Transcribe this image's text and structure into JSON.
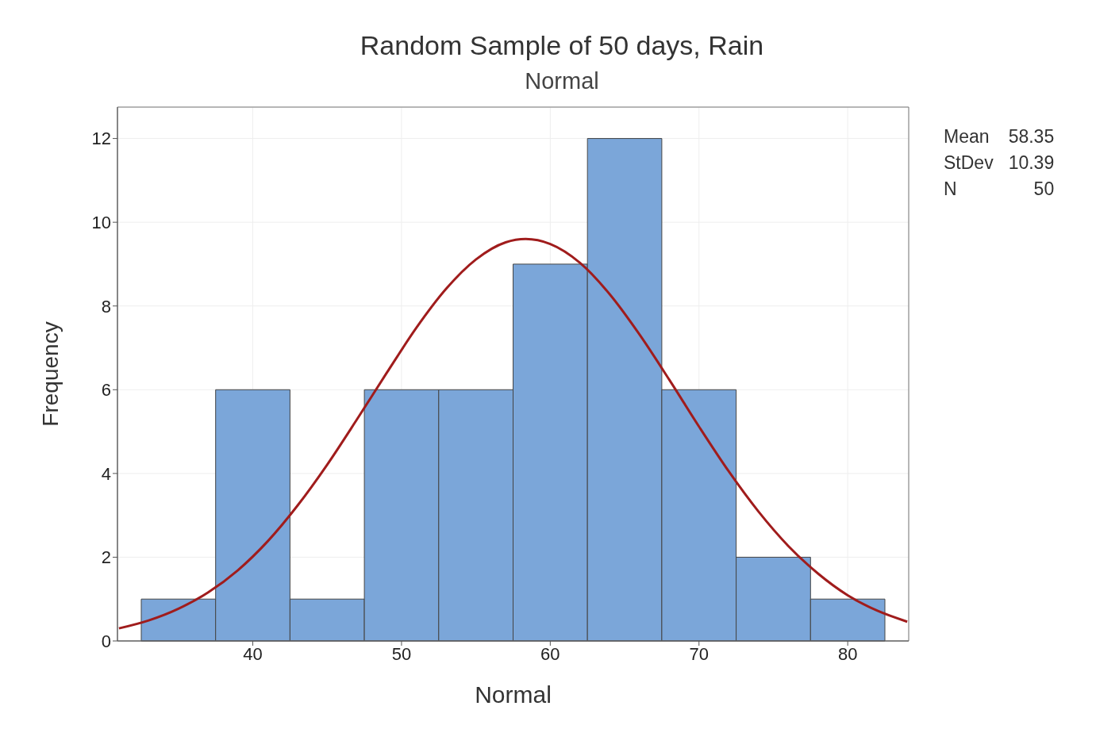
{
  "chart_data": {
    "type": "histogram",
    "title": "Random Sample of 50 days, Rain",
    "subtitle": "Normal",
    "xlabel": "Normal",
    "ylabel": "Frequency",
    "series": [
      {
        "color": "#7ba6d9",
        "bins": [
          32.5,
          37.5,
          42.5,
          47.5,
          52.5,
          57.5,
          62.5,
          67.5,
          72.5,
          77.5,
          82.5
        ],
        "values": [
          1,
          6,
          1,
          6,
          6,
          9,
          12,
          6,
          2,
          1
        ]
      },
      {
        "type": "line",
        "color": "#a01c1c",
        "x": [
          31,
          33,
          35,
          37,
          39,
          41,
          43,
          45,
          47,
          49,
          51,
          53,
          55,
          57,
          58.35,
          60,
          62,
          64,
          66,
          68,
          70,
          72,
          74,
          76,
          78,
          80,
          82,
          84
        ],
        "values": [
          0.3,
          0.49,
          0.77,
          1.16,
          1.69,
          2.38,
          3.23,
          4.21,
          5.29,
          6.4,
          7.48,
          8.41,
          9.11,
          9.52,
          9.6,
          9.48,
          9.03,
          8.28,
          7.32,
          6.24,
          5.12,
          4.05,
          3.09,
          2.27,
          1.61,
          1.09,
          0.72,
          0.46
        ]
      }
    ],
    "xlim": [
      30.9,
      84.1
    ],
    "xticks": [
      40,
      50,
      60,
      70,
      80
    ],
    "ylim": [
      0,
      12.75
    ],
    "yticks": [
      0,
      2,
      4,
      6,
      8,
      10,
      12
    ],
    "grid": true,
    "marker": "none",
    "line_style": "solid",
    "annotations": [
      "Mean 58.35",
      "StDev 10.39",
      "N 50"
    ]
  }
}
